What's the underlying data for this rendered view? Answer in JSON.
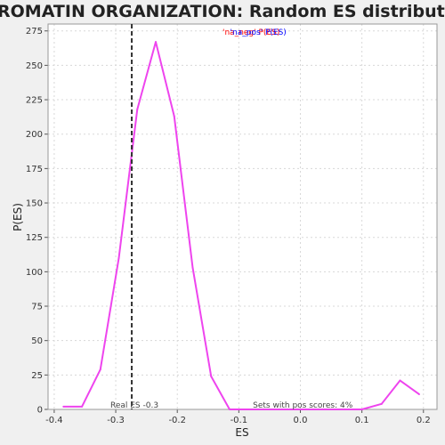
{
  "chart_data": {
    "type": "line",
    "title": "CHROMATIN ORGANIZATION: Random ES distribution",
    "xlabel": "ES",
    "ylabel": "P(ES)",
    "xlim": [
      -0.41,
      0.222
    ],
    "ylim": [
      0,
      280
    ],
    "xticks": [
      -0.4,
      -0.3,
      -0.2,
      -0.1,
      0.0,
      0.1,
      0.2
    ],
    "xtick_labels": [
      "-0.4",
      "-0.3",
      "-0.2",
      "-0.1",
      "0.0",
      "0.1",
      "0.2"
    ],
    "yticks": [
      0,
      25,
      50,
      75,
      100,
      125,
      150,
      175,
      200,
      225,
      250,
      275
    ],
    "ytick_labels": [
      "0",
      "25",
      "50",
      "75",
      "100",
      "125",
      "150",
      "175",
      "200",
      "225",
      "250",
      "275"
    ],
    "grid": true,
    "legend": {
      "position": "top-center",
      "entries": [
        "'na_neg' P(ES)",
        "'na_pos' P(ES)"
      ],
      "colors": [
        "#ff0000",
        "#0000ff"
      ]
    },
    "series": [
      {
        "color": "#ee44ee",
        "x": [
          -0.385,
          -0.355,
          -0.325,
          -0.295,
          -0.265,
          -0.235,
          -0.205,
          -0.175,
          -0.145,
          -0.115,
          -0.085,
          -0.055,
          -0.025,
          0.005,
          0.035,
          0.065,
          0.1,
          0.132,
          0.162,
          0.193
        ],
        "y": [
          2,
          2,
          29,
          110,
          218,
          267,
          213,
          103,
          24,
          0,
          0,
          0,
          0,
          0,
          0,
          0,
          0,
          4,
          21,
          11
        ]
      }
    ],
    "real_es": {
      "value": -0.274,
      "label": "Real ES -0.3",
      "color": "#333333"
    },
    "sets_pos_label": "Sets with pos scores: 4%"
  }
}
